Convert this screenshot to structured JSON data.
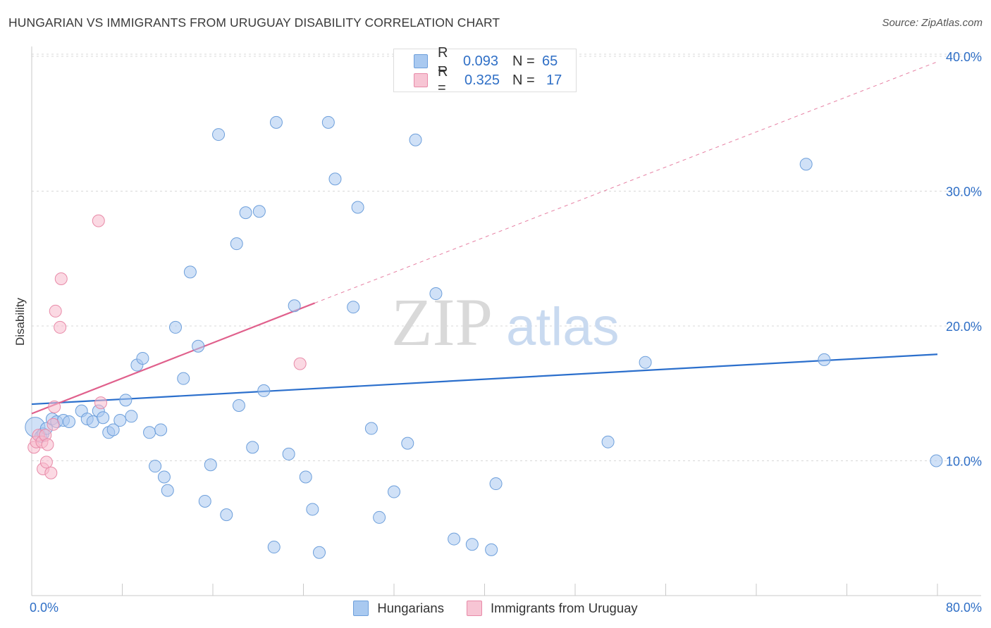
{
  "header": {
    "title": "HUNGARIAN VS IMMIGRANTS FROM URUGUAY DISABILITY CORRELATION CHART",
    "source": "Source: ZipAtlas.com"
  },
  "watermark": {
    "zip": "ZIP",
    "atlas": "atlas"
  },
  "legend_top": {
    "rows": [
      {
        "r_label": "R =",
        "r_value": "0.093",
        "n_label": "N =",
        "n_value": "65"
      },
      {
        "r_label": "R =",
        "r_value": "0.325",
        "n_label": "N =",
        "n_value": "17"
      }
    ]
  },
  "legend_bottom": {
    "items": [
      "Hungarians",
      "Immigrants from Uruguay"
    ]
  },
  "colors": {
    "hungarian_fill": "#a9c9f0",
    "hungarian_stroke": "#6d9fdb",
    "hungarian_line": "#2b6fcc",
    "uruguay_fill": "#f7b9cc",
    "uruguay_stroke": "#e88aa8",
    "uruguay_line": "#e0608c",
    "axis_text": "#2f6fc6",
    "grid": "#d8d8d8"
  },
  "chart_data": {
    "type": "scatter",
    "title": "HUNGARIAN VS IMMIGRANTS FROM URUGUAY DISABILITY CORRELATION CHART",
    "xlabel": "",
    "ylabel": "Disability",
    "xlim": [
      0,
      80
    ],
    "ylim": [
      0,
      40
    ],
    "x_tick_labels": [
      "0.0%",
      "80.0%"
    ],
    "y_ticks": [
      10,
      20,
      30,
      40
    ],
    "y_tick_labels": [
      "10.0%",
      "20.0%",
      "30.0%",
      "40.0%"
    ],
    "series": [
      {
        "name": "Hungarians",
        "R": 0.093,
        "N": 65,
        "trend": {
          "x": [
            0,
            80
          ],
          "y": [
            14.2,
            17.9
          ],
          "style": "solid"
        },
        "points": [
          [
            0.3,
            12.5
          ],
          [
            0.8,
            11.8
          ],
          [
            1.0,
            12.0
          ],
          [
            1.3,
            12.4
          ],
          [
            1.8,
            13.1
          ],
          [
            2.2,
            12.9
          ],
          [
            2.8,
            13.0
          ],
          [
            3.3,
            12.9
          ],
          [
            4.4,
            13.7
          ],
          [
            4.9,
            13.1
          ],
          [
            5.4,
            12.9
          ],
          [
            5.9,
            13.7
          ],
          [
            6.3,
            13.2
          ],
          [
            6.8,
            12.1
          ],
          [
            7.2,
            12.3
          ],
          [
            7.8,
            13.0
          ],
          [
            8.3,
            14.5
          ],
          [
            8.8,
            13.3
          ],
          [
            9.3,
            17.1
          ],
          [
            9.8,
            17.6
          ],
          [
            10.4,
            12.1
          ],
          [
            10.9,
            9.6
          ],
          [
            11.4,
            12.3
          ],
          [
            11.7,
            8.8
          ],
          [
            12.0,
            7.8
          ],
          [
            12.7,
            19.9
          ],
          [
            13.4,
            16.1
          ],
          [
            14.0,
            24.0
          ],
          [
            14.7,
            18.5
          ],
          [
            15.3,
            7.0
          ],
          [
            15.8,
            9.7
          ],
          [
            16.5,
            34.2
          ],
          [
            17.2,
            6.0
          ],
          [
            18.1,
            26.1
          ],
          [
            18.3,
            14.1
          ],
          [
            18.9,
            28.4
          ],
          [
            19.5,
            11.0
          ],
          [
            20.1,
            28.5
          ],
          [
            20.5,
            15.2
          ],
          [
            21.4,
            3.6
          ],
          [
            21.6,
            35.1
          ],
          [
            22.7,
            10.5
          ],
          [
            23.2,
            21.5
          ],
          [
            24.2,
            8.8
          ],
          [
            24.8,
            6.4
          ],
          [
            25.4,
            3.2
          ],
          [
            26.2,
            35.1
          ],
          [
            26.8,
            30.9
          ],
          [
            28.4,
            21.4
          ],
          [
            28.8,
            28.8
          ],
          [
            30.0,
            12.4
          ],
          [
            30.7,
            5.8
          ],
          [
            32.0,
            7.7
          ],
          [
            33.2,
            11.3
          ],
          [
            33.9,
            33.8
          ],
          [
            35.7,
            22.4
          ],
          [
            37.3,
            4.2
          ],
          [
            38.9,
            3.8
          ],
          [
            40.6,
            3.4
          ],
          [
            41.0,
            8.3
          ],
          [
            50.9,
            11.4
          ],
          [
            54.2,
            17.3
          ],
          [
            68.4,
            32.0
          ],
          [
            70.0,
            17.5
          ],
          [
            79.9,
            10.0
          ]
        ]
      },
      {
        "name": "Immigrants from Uruguay",
        "R": 0.325,
        "N": 17,
        "trend": {
          "x": [
            0,
            25
          ],
          "y": [
            13.5,
            21.7
          ],
          "style": "solid",
          "extended": {
            "x": [
              25,
              80
            ],
            "y": [
              21.7,
              39.6
            ],
            "style": "dashed"
          }
        },
        "points": [
          [
            0.2,
            11.0
          ],
          [
            0.4,
            11.4
          ],
          [
            0.6,
            11.9
          ],
          [
            0.9,
            11.4
          ],
          [
            1.0,
            9.4
          ],
          [
            1.2,
            11.9
          ],
          [
            1.3,
            9.9
          ],
          [
            1.4,
            11.2
          ],
          [
            1.7,
            9.1
          ],
          [
            1.9,
            12.7
          ],
          [
            2.0,
            14.0
          ],
          [
            2.1,
            21.1
          ],
          [
            2.5,
            19.9
          ],
          [
            2.6,
            23.5
          ],
          [
            5.9,
            27.8
          ],
          [
            6.1,
            14.3
          ],
          [
            23.7,
            17.2
          ]
        ]
      }
    ]
  }
}
